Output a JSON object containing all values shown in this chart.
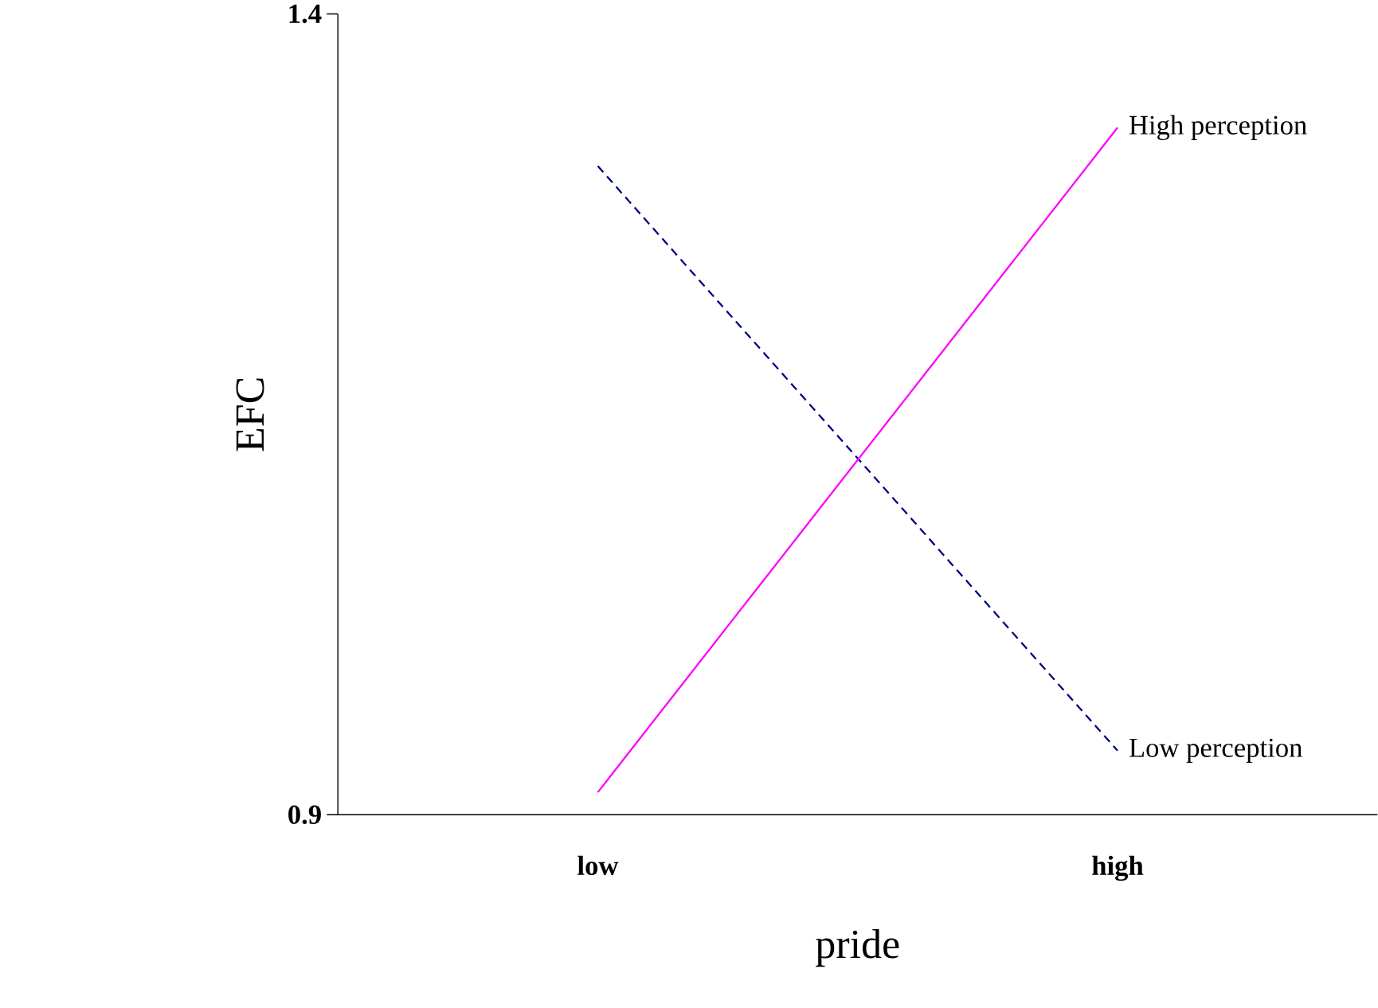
{
  "chart_data": {
    "type": "line",
    "xlabel": "pride",
    "ylabel": "EFC",
    "categories": [
      "low",
      "high"
    ],
    "series": [
      {
        "name": "Low perception",
        "color": "#000080",
        "line_style": "dashed",
        "values": [
          1.305,
          0.94
        ]
      },
      {
        "name": "High perception",
        "color": "#ff00ff",
        "line_style": "solid",
        "values": [
          0.914,
          1.329
        ]
      }
    ],
    "ylim": [
      0.9,
      1.4
    ],
    "yticks": [
      0.9,
      1.4
    ],
    "grid": false,
    "legend": false,
    "marker": "none"
  }
}
